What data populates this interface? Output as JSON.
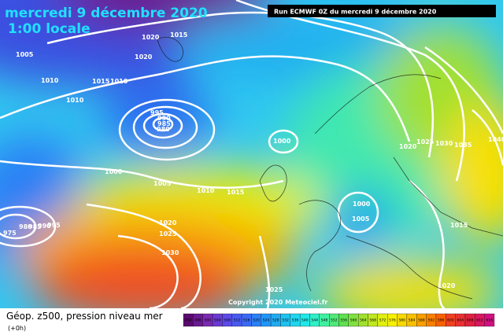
{
  "header": {
    "title": "mercredi 9 décembre 2020",
    "time": "1:00 locale",
    "run": "Run ECMWF 0Z du mercredi 9 décembre 2020"
  },
  "copyright": "Copyright 2020 Meteociel.fr",
  "legend": {
    "title": "Géop. z500, pression niveau mer",
    "step": "(+0h)",
    "levels": [
      492,
      496,
      500,
      504,
      508,
      512,
      516,
      520,
      524,
      528,
      532,
      536,
      540,
      544,
      548,
      552,
      556,
      560,
      564,
      568,
      572,
      576,
      580,
      584,
      588,
      592,
      596,
      600,
      604,
      608,
      612,
      616
    ],
    "colors": [
      "#5a0a6e",
      "#6a1a90",
      "#7a2ab0",
      "#6a3ad0",
      "#5a4ae8",
      "#4a5af0",
      "#3a6af5",
      "#2a80f5",
      "#2095f5",
      "#20aaf0",
      "#20c0f0",
      "#20d5f0",
      "#20e8e8",
      "#30f0c8",
      "#40f0a0",
      "#50e878",
      "#60e050",
      "#80e040",
      "#a0e030",
      "#c0e820",
      "#e0f010",
      "#f8f000",
      "#f8d800",
      "#f8c000",
      "#f8a000",
      "#f88000",
      "#f86000",
      "#f04020",
      "#e83030",
      "#e02040",
      "#d81860",
      "#d01080"
    ]
  },
  "isobars": [
    "1020",
    "1015",
    "1020",
    "1005",
    "1010",
    "1015",
    "1010",
    "1010",
    "995",
    "990",
    "985",
    "980",
    "1000",
    "1020",
    "1025",
    "1030",
    "1035",
    "1040",
    "1000",
    "1005",
    "1010",
    "1015",
    "975",
    "980",
    "985",
    "990",
    "995",
    "1000",
    "1005",
    "1020",
    "1025",
    "1030",
    "1015",
    "1020",
    "1025"
  ]
}
